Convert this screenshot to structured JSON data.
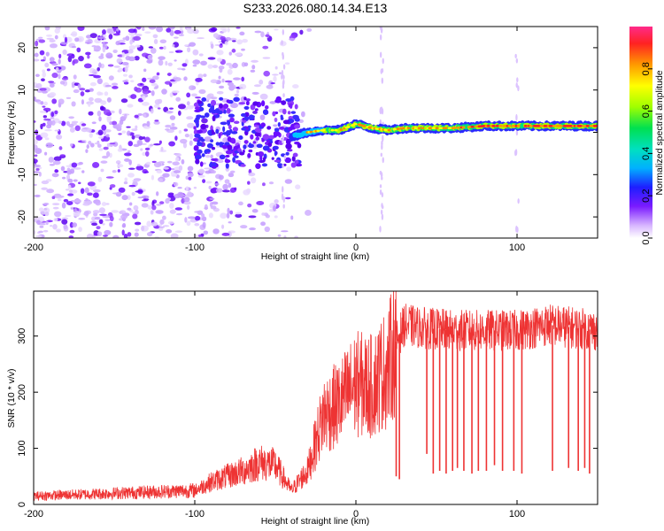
{
  "title": "S233.2026.080.14.34.E13",
  "chart_data": [
    {
      "type": "heatmap",
      "xlabel": "Height of straight line (km)",
      "ylabel": "Frequency (Hz)",
      "xlim": [
        -200,
        150
      ],
      "ylim": [
        -25,
        25
      ],
      "xticks": [
        -200,
        -100,
        0,
        100
      ],
      "yticks": [
        -20,
        -10,
        0,
        10,
        20
      ],
      "colorbar": {
        "label": "Normalized spectral amplitude",
        "range": [
          0,
          1
        ],
        "ticks": [
          "0.0",
          "0.2",
          "0.4",
          "0.6",
          "0.8"
        ]
      },
      "ridge": {
        "description_values": "dominant frequency vs height",
        "x": [
          -40,
          -30,
          -20,
          -10,
          0,
          10,
          20,
          30,
          40,
          60,
          80,
          100,
          120,
          150
        ],
        "y": [
          -1,
          0,
          0.5,
          0.5,
          2,
          1,
          0.5,
          1,
          1,
          1,
          1.5,
          1.5,
          1.5,
          1.5
        ]
      }
    },
    {
      "type": "line",
      "xlabel": "Height of straight line (km)",
      "ylabel": "SNR (10 * v/v)",
      "xlim": [
        -200,
        150
      ],
      "ylim": [
        0,
        380
      ],
      "xticks": [
        -200,
        -100,
        0,
        100
      ],
      "yticks": [
        0,
        100,
        200,
        300
      ],
      "series": [
        {
          "name": "SNR",
          "color": "#ee3333",
          "envelope_x": [
            -200,
            -150,
            -100,
            -90,
            -70,
            -60,
            -50,
            -40,
            -30,
            -25,
            -20,
            -10,
            0,
            10,
            15,
            20,
            25,
            30,
            40,
            60,
            80,
            100,
            120,
            150
          ],
          "envelope_y": [
            15,
            20,
            25,
            40,
            60,
            75,
            70,
            25,
            60,
            110,
            160,
            180,
            215,
            210,
            230,
            245,
            290,
            320,
            315,
            310,
            310,
            310,
            320,
            310
          ],
          "dropouts_x": [
            25,
            27,
            44,
            48,
            52,
            56,
            60,
            63,
            67,
            72,
            76,
            81,
            86,
            91,
            98,
            103,
            122,
            132,
            138,
            142,
            145
          ],
          "dropouts_y": [
            50,
            45,
            90,
            55,
            60,
            55,
            60,
            65,
            60,
            55,
            60,
            60,
            70,
            60,
            60,
            55,
            60,
            65,
            60,
            65,
            55
          ]
        }
      ]
    }
  ]
}
